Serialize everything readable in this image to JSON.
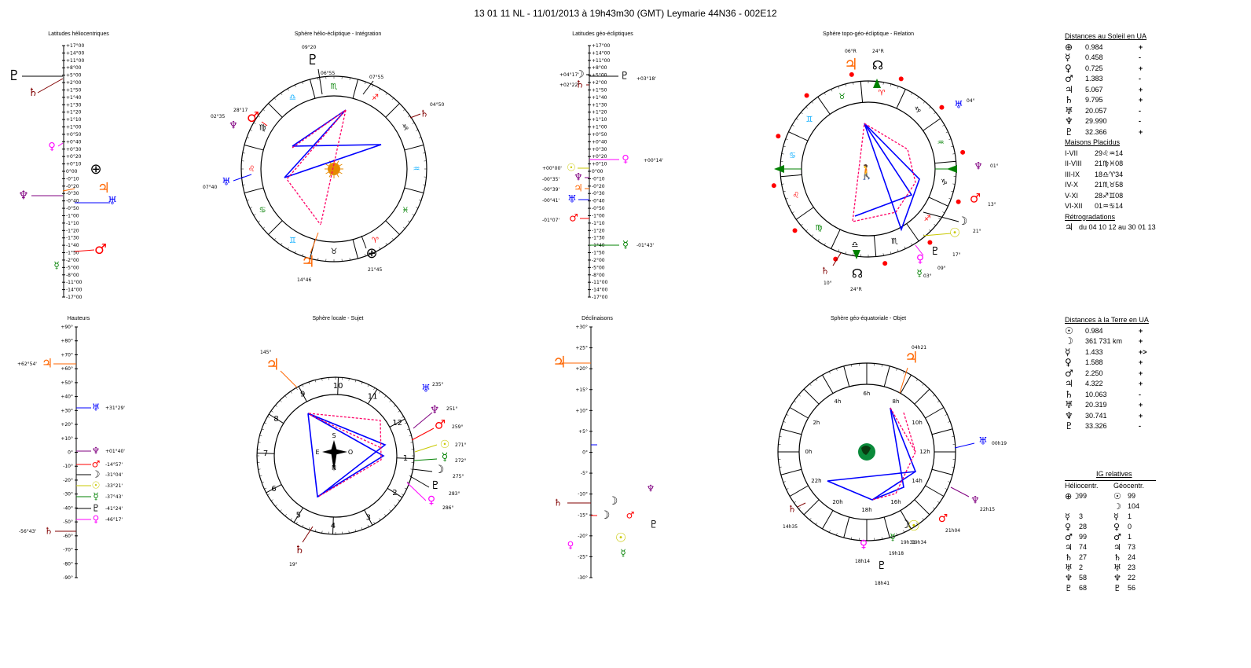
{
  "header": {
    "title": "13 01 11 NL  -  11/01/2013 à 19h43m30 (GMT)  Leymarie  44N36 - 002E12"
  },
  "panels": {
    "helio_latitudes": "Latitudes héliocentriques",
    "helio_sphere": "Sphère hélio-écliptique - Intégration",
    "geo_latitudes": "Latitudes géo-écliptiques",
    "topo_sphere": "Sphère topo-géo-écliptique - Relation",
    "heights": "Hauteurs",
    "local_sphere": "Sphère locale - Sujet",
    "declinations": "Déclinaisons",
    "equatorial_sphere": "Sphère géo-équatoriale - Objet"
  },
  "sidebar": {
    "sun_dist_title": "Distances au Soleil en UA",
    "sun_dist": [
      {
        "glyph": "⊕",
        "value": "0.984",
        "sign": "+"
      },
      {
        "glyph": "☿",
        "value": "0.458",
        "sign": "-"
      },
      {
        "glyph": "♀",
        "value": "0.725",
        "sign": "+"
      },
      {
        "glyph": "♂",
        "value": "1.383",
        "sign": "-"
      },
      {
        "glyph": "♃",
        "value": "5.067",
        "sign": "+"
      },
      {
        "glyph": "♄",
        "value": "9.795",
        "sign": "+"
      },
      {
        "glyph": "♅",
        "value": "20.057",
        "sign": "-"
      },
      {
        "glyph": "♆",
        "value": "29.990",
        "sign": "-"
      },
      {
        "glyph": "♇",
        "value": "32.366",
        "sign": "+"
      }
    ],
    "houses_title": "Maisons Placidus",
    "houses": [
      {
        "label": "I-VII",
        "value": "29♌♒14"
      },
      {
        "label": "II-VIII",
        "value": "21♍♓08"
      },
      {
        "label": "III-IX",
        "value": "18♎♈34"
      },
      {
        "label": "IV-X",
        "value": "21♏♉58"
      },
      {
        "label": "V-XI",
        "value": "28♐♊08"
      },
      {
        "label": "VI-XII",
        "value": "01♒♋14"
      }
    ],
    "retro_title": "Rétrogradations",
    "retro_glyph": "♃",
    "retro_text": "du 04 10 12 au 30 01 13",
    "earth_dist_title": "Distances à la Terre en UA",
    "earth_dist": [
      {
        "glyph": "☉",
        "value": "0.984",
        "sign": "+"
      },
      {
        "glyph": "☽",
        "value": "361 731 km",
        "sign": "+"
      },
      {
        "glyph": "☿",
        "value": "1.433",
        "sign": "+>"
      },
      {
        "glyph": "♀",
        "value": "1.588",
        "sign": "+"
      },
      {
        "glyph": "♂",
        "value": "2.250",
        "sign": "+"
      },
      {
        "glyph": "♃",
        "value": "4.322",
        "sign": "+"
      },
      {
        "glyph": "♄",
        "value": "10.063",
        "sign": "-"
      },
      {
        "glyph": "♅",
        "value": "20.319",
        "sign": "+"
      },
      {
        "glyph": "♆",
        "value": "30.741",
        "sign": "+"
      },
      {
        "glyph": "♇",
        "value": "33.326",
        "sign": "-"
      }
    ],
    "ig_title": "IG relatives",
    "ig_helio": "Héliocentr.",
    "ig_geo": "Géocentr.",
    "ig_rows": [
      {
        "hg": "⊕☽",
        "hv": "99",
        "gg": "☉",
        "gv": "99"
      },
      {
        "hg": "",
        "hv": "",
        "gg": "☽",
        "gv": "104"
      },
      {
        "hg": "☿",
        "hv": "3",
        "gg": "☿",
        "gv": "1"
      },
      {
        "hg": "♀",
        "hv": "28",
        "gg": "♀",
        "gv": "0"
      },
      {
        "hg": "♂",
        "hv": "99",
        "gg": "♂",
        "gv": "1"
      },
      {
        "hg": "♃",
        "hv": "74",
        "gg": "♃",
        "gv": "73"
      },
      {
        "hg": "♄",
        "hv": "27",
        "gg": "♄",
        "gv": "24"
      },
      {
        "hg": "♅",
        "hv": "2",
        "gg": "♅",
        "gv": "23"
      },
      {
        "hg": "♆",
        "hv": "58",
        "gg": "♆",
        "gv": "22"
      },
      {
        "hg": "♇",
        "hv": "68",
        "gg": "♇",
        "gv": "56"
      }
    ]
  },
  "scales": {
    "latitude_ticks": [
      "-17°00",
      "-14°00",
      "-11°00",
      "-8°00",
      "-5°00",
      "-2°00",
      "-1°50",
      "-1°40",
      "-1°30",
      "-1°20",
      "-1°10",
      "-1°00",
      "-0°50",
      "-0°40",
      "-0°30",
      "-0°20",
      "-0°10",
      "0°00",
      "+0°10",
      "+0°20",
      "+0°30",
      "+0°40",
      "+0°50",
      "+1°00",
      "+1°10",
      "+1°20",
      "+1°30",
      "+1°40",
      "+1°50",
      "+2°00",
      "+5°00",
      "+8°00",
      "+11°00",
      "+14°00",
      "+17°00"
    ],
    "height_ticks": [
      "+90°",
      "+80°",
      "+70°",
      "+60°",
      "+50°",
      "+40°",
      "+30°",
      "+20°",
      "+10°",
      "0°",
      "-10°",
      "-20°",
      "-30°",
      "-40°",
      "-50°",
      "-60°",
      "-70°",
      "-80°",
      "-90°"
    ],
    "decl_ticks": [
      "+30°",
      "+25°",
      "+20°",
      "+15°",
      "+10°",
      "+5°",
      "0°",
      "-5°",
      "-10°",
      "-15°",
      "-20°",
      "-25°",
      "-30°"
    ]
  },
  "helio_lat_labels": [
    {
      "glyph": "♇",
      "color": "#000"
    },
    {
      "glyph": "♄",
      "color": "#800000"
    },
    {
      "glyph": "♀",
      "color": "#ff00ff"
    },
    {
      "glyph": "⊕",
      "color": "#000"
    },
    {
      "glyph": "♆",
      "color": "#800080"
    },
    {
      "glyph": "♃",
      "color": "#ff6600"
    },
    {
      "glyph": "♅",
      "color": "#0000ff"
    },
    {
      "glyph": "♂",
      "color": "#ff0000"
    },
    {
      "glyph": "☿",
      "color": "#008000"
    }
  ],
  "helio_sphere_labels": {
    "pluto_lon": "09°20",
    "t1": "06°55",
    "t2": "07°55",
    "sat": "04°50",
    "nep": "02°35",
    "mars": "28°17",
    "ura": "07°40",
    "jup": "14°46",
    "earth": "21°45",
    "signs": [
      "♑",
      "♐",
      "♏",
      "♎",
      "♍",
      "♌",
      "♋",
      "♊",
      "♉",
      "♈",
      "♓",
      "♒"
    ]
  },
  "geo_lat_labels": {
    "moon": "+04°17'",
    "sat": "+02°22'",
    "pluto": "+03°18'",
    "venus": "+00°14'",
    "sun": "+00°00'",
    "nep": "-00°35'",
    "jup": "-00°39'",
    "ura": "-00°41'",
    "mars": "-01°07'",
    "merc": "-01°43'"
  },
  "topo_labels": {
    "top1": "06°R",
    "top2": "24°R",
    "ura": "04°",
    "nep": "01°",
    "mars": "13°",
    "sun": "21°",
    "moon": "21°",
    "pluto": "17°",
    "venus": "09°",
    "merc": "03°",
    "sat": "10°",
    "node": "24°R"
  },
  "heights_labels": [
    {
      "glyph": "♃",
      "text": "+62°54'",
      "color": "#ff6600"
    },
    {
      "glyph": "♅",
      "text": "+31°29'",
      "color": "#0000ff"
    },
    {
      "glyph": "♆",
      "text": "+01°40'",
      "color": "#800080"
    },
    {
      "glyph": "♂",
      "text": "-14°57'",
      "color": "#ff0000"
    },
    {
      "glyph": "☽",
      "text": "-31°04'",
      "color": "#000"
    },
    {
      "glyph": "☉",
      "text": "-33°21'",
      "color": "#c8c800"
    },
    {
      "glyph": "☿",
      "text": "-37°43'",
      "color": "#008000"
    },
    {
      "glyph": "♇",
      "text": "-41°24'",
      "color": "#000"
    },
    {
      "glyph": "♀",
      "text": "-46°17'",
      "color": "#ff00ff"
    },
    {
      "glyph": "♄",
      "text": "-56°43'",
      "color": "#800000"
    }
  ],
  "local_labels": {
    "jup": "145°",
    "ura": "235°",
    "nep": "251°",
    "mars": "259°",
    "sun": "271°",
    "merc": "272°",
    "moon": "275°",
    "pluto": "283°",
    "venus": "286°",
    "sat": "19°",
    "houses": [
      "10",
      "9",
      "8",
      "7",
      "6",
      "5",
      "4",
      "3",
      "2",
      "1",
      "12",
      "11"
    ],
    "compass": [
      "S",
      "E",
      "O",
      "N"
    ]
  },
  "decl_glyphs": [
    {
      "glyph": "♃",
      "color": "#ff6600"
    },
    {
      "glyph": "",
      "color": "#0000ff"
    },
    {
      "glyph": "☽",
      "color": "#000"
    },
    {
      "glyph": "♄",
      "color": "#800000"
    },
    {
      "glyph": "♆",
      "color": "#800080"
    },
    {
      "glyph": "☽",
      "color": "#000"
    },
    {
      "glyph": "♂",
      "color": "#ff0000"
    },
    {
      "glyph": "♇",
      "color": "#000"
    },
    {
      "glyph": "☉",
      "color": "#c8c800"
    },
    {
      "glyph": "♀",
      "color": "#ff00ff"
    },
    {
      "glyph": "☿",
      "color": "#008000"
    }
  ],
  "equatorial_labels": {
    "jup": "04h21",
    "ura": "00h19",
    "nep": "22h15",
    "mars": "21h04",
    "merc": "19h31",
    "moon": "19h34",
    "sun": "19h18",
    "pluto": "18h41",
    "venus": "18h14",
    "sat": "14h35",
    "hours": [
      "6h",
      "4h",
      "2h",
      "0h",
      "22h",
      "20h",
      "18h",
      "16h",
      "14h",
      "12h",
      "10h",
      "8h"
    ]
  }
}
